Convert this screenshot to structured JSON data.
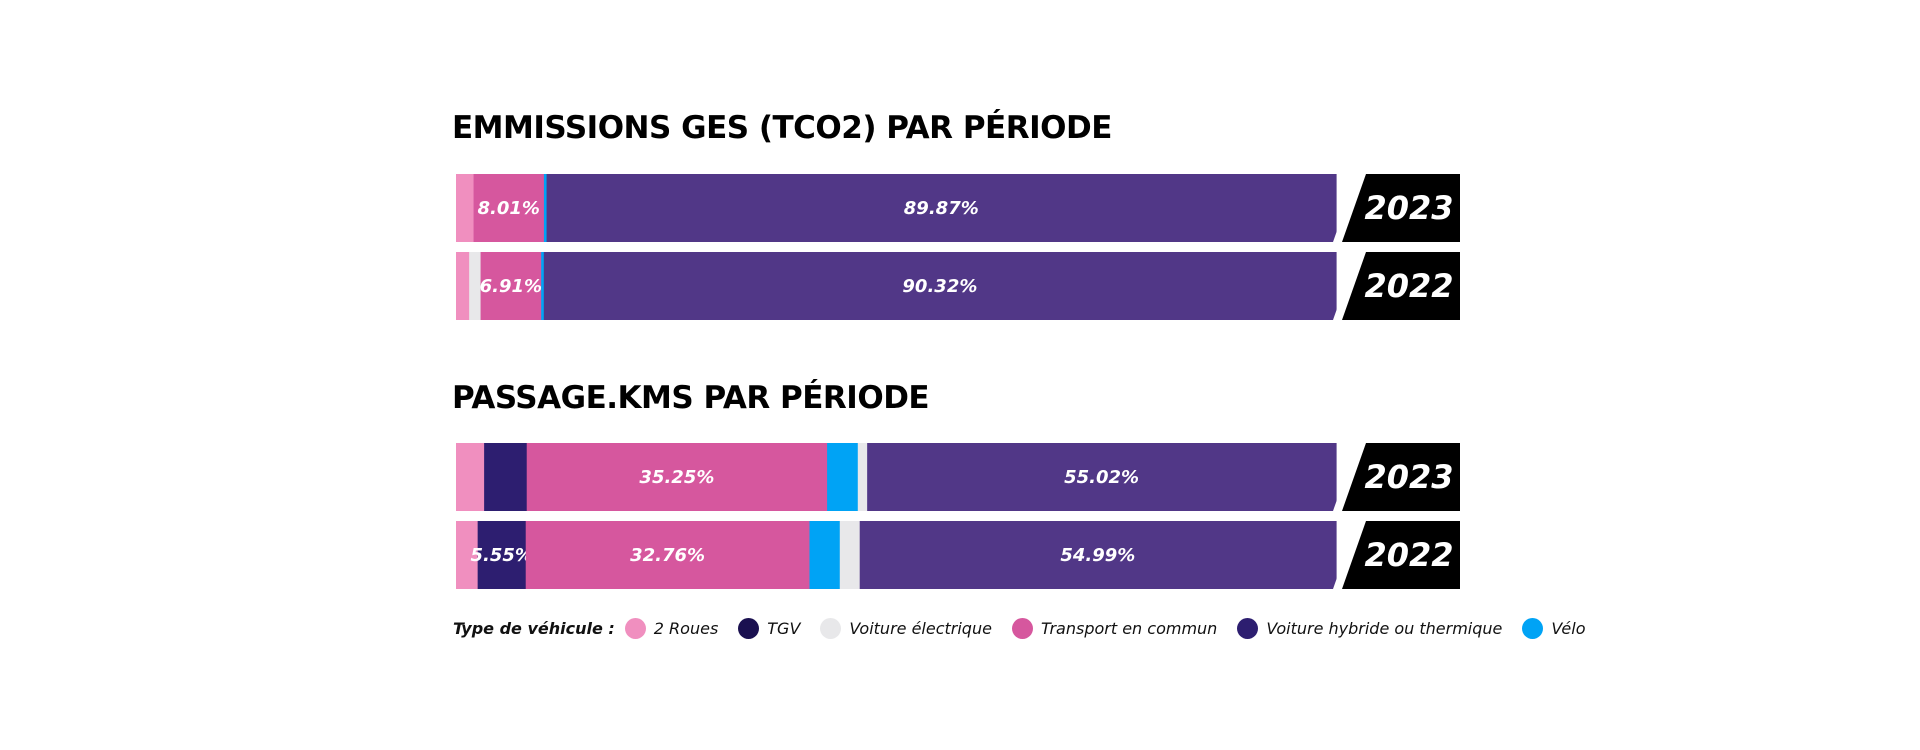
{
  "chart_data": [
    {
      "type": "bar",
      "stacked": true,
      "orientation": "horizontal",
      "normalized_percent": true,
      "title": "EMMISSIONS GES (TCO2) PAR PÉRIODE",
      "categories": [
        "2023",
        "2022"
      ],
      "series": [
        {
          "name": "2 Roues",
          "color": "#f08fbf",
          "values": [
            2.0,
            1.5
          ],
          "labels": [
            "",
            ""
          ]
        },
        {
          "name": "TGV",
          "color": "#1a1050",
          "values": [
            0.0,
            0.0
          ],
          "labels": [
            "",
            ""
          ]
        },
        {
          "name": "Voiture électrique",
          "color": "#e8e8ea",
          "values": [
            0.0,
            1.3
          ],
          "labels": [
            "",
            ""
          ]
        },
        {
          "name": "Transport en commun",
          "color": "#d6579e",
          "values": [
            8.01,
            6.91
          ],
          "labels": [
            "8.01%",
            "6.91%"
          ]
        },
        {
          "name": "Vélo",
          "color": "#00a3f5",
          "values": [
            0.3,
            0.3
          ],
          "labels": [
            "",
            ""
          ]
        },
        {
          "name": "Voiture hybride ou thermique",
          "color": "#513787",
          "values": [
            89.87,
            90.32
          ],
          "labels": [
            "89.87%",
            "90.32%"
          ]
        }
      ]
    },
    {
      "type": "bar",
      "stacked": true,
      "orientation": "horizontal",
      "normalized_percent": true,
      "title": "PASSAGE.KMS PAR PÉRIODE",
      "categories": [
        "2023",
        "2022"
      ],
      "series": [
        {
          "name": "2 Roues",
          "color": "#f08fbf",
          "values": [
            3.3,
            2.5
          ],
          "labels": [
            "",
            ""
          ]
        },
        {
          "name": "TGV",
          "color": "#2d1e70",
          "values": [
            5.0,
            5.55
          ],
          "labels": [
            "",
            "5.55%"
          ]
        },
        {
          "name": "Transport en commun",
          "color": "#d6579e",
          "values": [
            35.25,
            32.76
          ],
          "labels": [
            "35.25%",
            "32.76%"
          ]
        },
        {
          "name": "Vélo",
          "color": "#00a3f5",
          "values": [
            3.6,
            3.5
          ],
          "labels": [
            "",
            ""
          ]
        },
        {
          "name": "Voiture électrique",
          "color": "#e8e8ea",
          "values": [
            1.1,
            2.3
          ],
          "labels": [
            "",
            ""
          ]
        },
        {
          "name": "Voiture hybride ou thermique",
          "color": "#513787",
          "values": [
            55.02,
            54.99
          ],
          "labels": [
            "55.02%",
            "54.99%"
          ]
        }
      ]
    }
  ],
  "legend": {
    "title": "Type de véhicule :",
    "items": [
      {
        "label": "2 Roues",
        "color": "#f08fbf"
      },
      {
        "label": "TGV",
        "color": "#1a1050"
      },
      {
        "label": "Voiture électrique",
        "color": "#e8e8ea"
      },
      {
        "label": "Transport en commun",
        "color": "#d6579e"
      },
      {
        "label": "Voiture hybride ou thermique",
        "color": "#2d1e70"
      },
      {
        "label": "Vélo",
        "color": "#00a3f5"
      }
    ]
  },
  "year_badge_color": "#000000"
}
